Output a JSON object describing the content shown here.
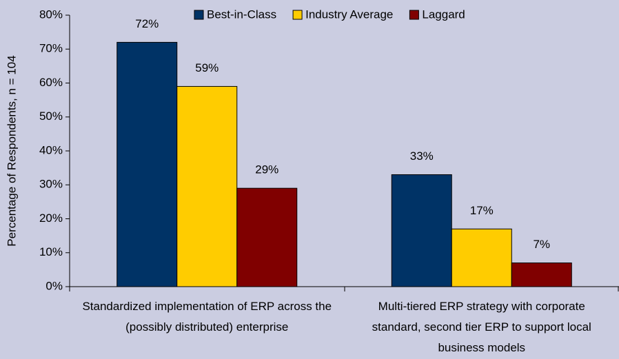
{
  "chart_data": {
    "type": "bar",
    "y_label": "Percentage of Respondents, n = 104",
    "categories": [
      "Standardized implementation of ERP across the (possibly distributed) enterprise",
      "Multi-tiered ERP strategy with corporate standard, second tier ERP to support local business models"
    ],
    "series": [
      {
        "name": "Best-in-Class",
        "color": "#003366",
        "values": [
          72,
          33
        ],
        "value_labels": [
          "72%",
          "33%"
        ]
      },
      {
        "name": "Industry Average",
        "color": "#ffcc00",
        "values": [
          59,
          17
        ],
        "value_labels": [
          "59%",
          "17%"
        ]
      },
      {
        "name": "Laggard",
        "color": "#800000",
        "values": [
          29,
          7
        ],
        "value_labels": [
          "29%",
          "7%"
        ]
      }
    ],
    "ylim": [
      0,
      80
    ],
    "yticks": [
      {
        "value": 0,
        "label": "0%"
      },
      {
        "value": 10,
        "label": "10%"
      },
      {
        "value": 20,
        "label": "20%"
      },
      {
        "value": 30,
        "label": "30%"
      },
      {
        "value": 40,
        "label": "40%"
      },
      {
        "value": 50,
        "label": "50%"
      },
      {
        "value": 60,
        "label": "60%"
      },
      {
        "value": 70,
        "label": "70%"
      },
      {
        "value": 80,
        "label": "80%"
      }
    ],
    "legend": "top"
  }
}
